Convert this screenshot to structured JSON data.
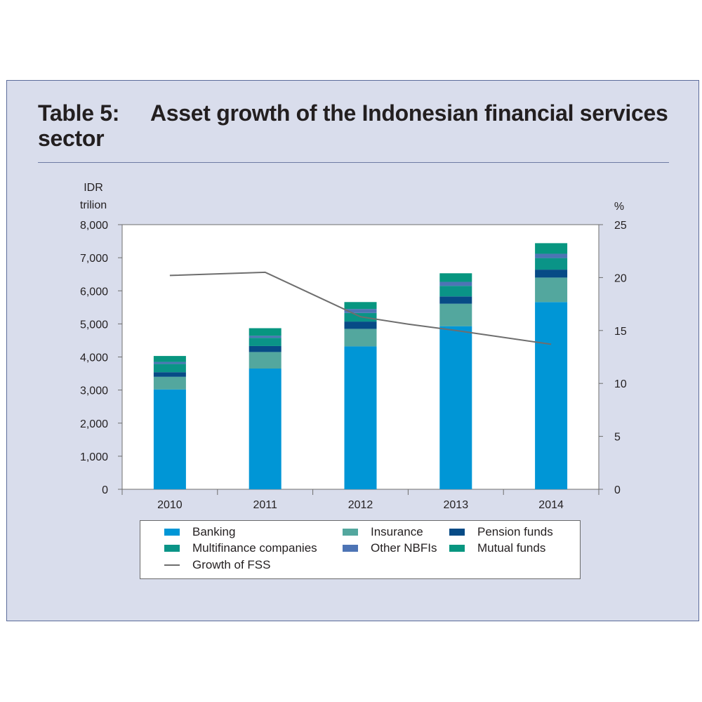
{
  "title": {
    "number": "Table 5:",
    "text": "Asset growth of the Indonesian financial services sector"
  },
  "chart_data": {
    "type": "bar",
    "stacked": true,
    "categories": [
      "2010",
      "2011",
      "2012",
      "2013",
      "2014"
    ],
    "left_axis": {
      "label_line1": "IDR",
      "label_line2": "trilion",
      "ylim": [
        0,
        8000
      ],
      "ticks": [
        0,
        1000,
        2000,
        3000,
        4000,
        5000,
        6000,
        7000,
        8000
      ],
      "tick_labels": [
        "0",
        "1,000",
        "2,000",
        "3,000",
        "4,000",
        "5,000",
        "6,000",
        "7,000",
        "8,000"
      ]
    },
    "right_axis": {
      "label": "%",
      "ylim": [
        0,
        25
      ],
      "ticks": [
        0,
        5,
        10,
        15,
        20,
        25
      ],
      "tick_labels": [
        "0",
        "5",
        "10",
        "15",
        "20",
        "25"
      ]
    },
    "series": [
      {
        "name": "Banking",
        "color": "#0096d6",
        "values": [
          3020,
          3650,
          4320,
          4930,
          5660
        ]
      },
      {
        "name": "Insurance",
        "color": "#53a79e",
        "values": [
          380,
          500,
          530,
          680,
          740
        ]
      },
      {
        "name": "Pension funds",
        "color": "#074b86",
        "values": [
          140,
          180,
          220,
          220,
          240
        ]
      },
      {
        "name": "Multifinance companies",
        "color": "#0a9487",
        "values": [
          250,
          250,
          260,
          320,
          350
        ]
      },
      {
        "name": "Other NBFIs",
        "color": "#4d74b5",
        "values": [
          60,
          60,
          120,
          120,
          130
        ]
      },
      {
        "name": "Mutual funds",
        "color": "#079680",
        "values": [
          180,
          230,
          210,
          260,
          320
        ]
      }
    ],
    "line_series": {
      "name": "Growth of FSS",
      "color": "#6e6e6e",
      "axis": "right",
      "x": [
        "2010",
        "2011",
        "2012",
        "2012.5",
        "2013",
        "2014"
      ],
      "values": [
        20.2,
        20.5,
        16.3,
        15.6,
        15.0,
        13.7
      ]
    },
    "grid": false,
    "legend_position": "bottom"
  },
  "legend": {
    "items": [
      {
        "label": "Banking",
        "color": "#0096d6",
        "kind": "box"
      },
      {
        "label": "Insurance",
        "color": "#53a79e",
        "kind": "box"
      },
      {
        "label": "Pension funds",
        "color": "#074b86",
        "kind": "box"
      },
      {
        "label": "Multifinance companies",
        "color": "#0a9487",
        "kind": "box"
      },
      {
        "label": "Other NBFIs",
        "color": "#4d74b5",
        "kind": "box"
      },
      {
        "label": "Mutual funds",
        "color": "#079680",
        "kind": "box"
      },
      {
        "label": "Growth of FSS",
        "color": "#6e6e6e",
        "kind": "line"
      }
    ]
  }
}
